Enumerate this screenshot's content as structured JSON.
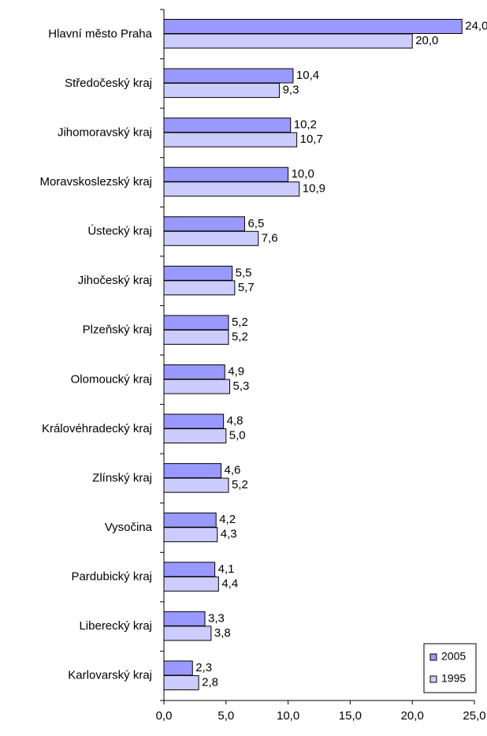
{
  "chart_data": {
    "type": "bar",
    "orientation": "horizontal",
    "categories": [
      "Hlavní město Praha",
      "Středočeský kraj",
      "Jihomoravský kraj",
      "Moravskoslezský kraj",
      "Ústecký kraj",
      "Jihočeský kraj",
      "Plzeňský kraj",
      "Olomoucký kraj",
      "Královéhradecký kraj",
      "Zlínský kraj",
      "Vysočina",
      "Pardubický kraj",
      "Liberecký kraj",
      "Karlovarský kraj"
    ],
    "series": [
      {
        "name": "2005",
        "color": "#9999ff",
        "values": [
          24.0,
          10.4,
          10.2,
          10.0,
          6.5,
          5.5,
          5.2,
          4.9,
          4.8,
          4.6,
          4.2,
          4.1,
          3.3,
          2.3
        ],
        "value_labels": [
          "24,0",
          "10,4",
          "10,2",
          "10,0",
          "6,5",
          "5,5",
          "5,2",
          "4,9",
          "4,8",
          "4,6",
          "4,2",
          "4,1",
          "3,3",
          "2,3"
        ]
      },
      {
        "name": "1995",
        "color": "#ccccff",
        "values": [
          20.0,
          9.3,
          10.7,
          10.9,
          7.6,
          5.7,
          5.2,
          5.3,
          5.0,
          5.2,
          4.3,
          4.4,
          3.8,
          2.8
        ],
        "value_labels": [
          "20,0",
          "9,3",
          "10,7",
          "10,9",
          "7,6",
          "5,7",
          "5,2",
          "5,3",
          "5,0",
          "5,2",
          "4,3",
          "4,4",
          "3,8",
          "2,8"
        ]
      }
    ],
    "xlim": [
      0,
      25
    ],
    "xticks": [
      {
        "value": 0,
        "label": "0,0"
      },
      {
        "value": 5,
        "label": "5,0"
      },
      {
        "value": 10,
        "label": "10,0"
      },
      {
        "value": 15,
        "label": "15,0"
      },
      {
        "value": 20,
        "label": "20,0"
      },
      {
        "value": 25,
        "label": "25,0"
      }
    ],
    "grid": false,
    "legend": "bottom-right"
  }
}
